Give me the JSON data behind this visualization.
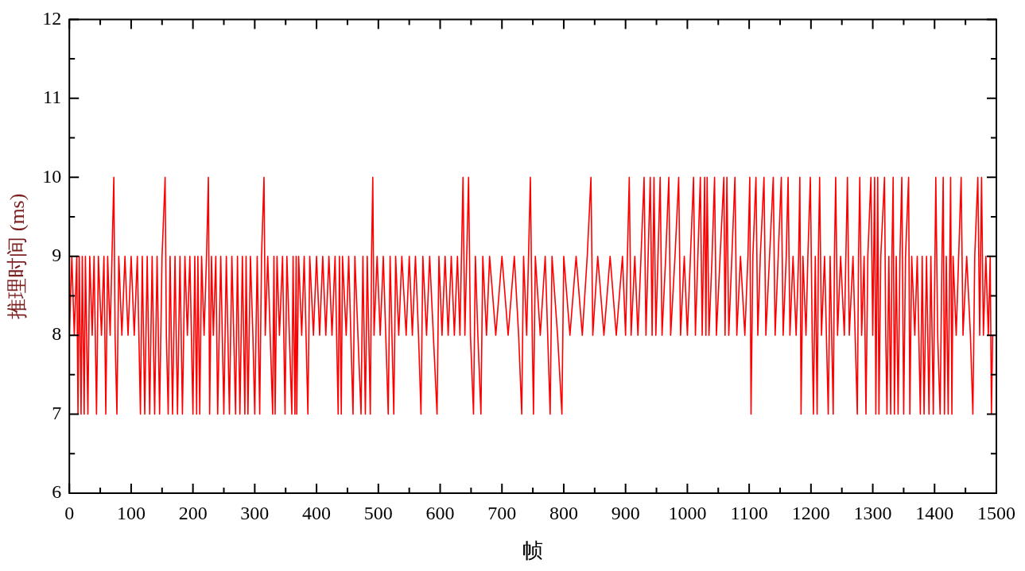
{
  "chart_data": {
    "type": "line",
    "xlabel": "帧",
    "ylabel": "推理时间 (ms)",
    "xlim": [
      0,
      1500
    ],
    "xticks": [
      0,
      100,
      200,
      300,
      400,
      500,
      600,
      700,
      800,
      900,
      1000,
      1100,
      1200,
      1300,
      1400,
      1500
    ],
    "ylim": [
      6,
      12
    ],
    "yticks": [
      6,
      7,
      8,
      9,
      10,
      11,
      12
    ],
    "grid": false,
    "legend": false,
    "marker": "none",
    "line_style": "solid",
    "series": [
      {
        "color": "#ff0000",
        "x": [
          0,
          4,
          8,
          12,
          14,
          16,
          19,
          21,
          24,
          26,
          30,
          33,
          37,
          40,
          44,
          47,
          52,
          56,
          59,
          62,
          66,
          69,
          72,
          74,
          77,
          80,
          85,
          90,
          95,
          100,
          105,
          110,
          115,
          118,
          122,
          126,
          130,
          134,
          138,
          142,
          146,
          150,
          155,
          157,
          160,
          163,
          167,
          171,
          175,
          179,
          183,
          187,
          191,
          195,
          200,
          203,
          206,
          208,
          211,
          214,
          218,
          222,
          225,
          227,
          230,
          233,
          237,
          240,
          245,
          250,
          254,
          259,
          263,
          269,
          272,
          276,
          280,
          284,
          286,
          289,
          293,
          297,
          300,
          304,
          308,
          311,
          315,
          317,
          321,
          325,
          329,
          331,
          333,
          336,
          340,
          345,
          349,
          352,
          356,
          360,
          362,
          365,
          367,
          368,
          371,
          376,
          380,
          386,
          389,
          395,
          400,
          405,
          410,
          415,
          420,
          425,
          430,
          435,
          437,
          440,
          442,
          448,
          452,
          459,
          462,
          467,
          472,
          475,
          479,
          482,
          487,
          489,
          491,
          493,
          498,
          503,
          508,
          512,
          516,
          519,
          525,
          528,
          533,
          538,
          545,
          550,
          555,
          560,
          565,
          569,
          572,
          578,
          583,
          589,
          595,
          598,
          603,
          608,
          613,
          618,
          623,
          628,
          632,
          637,
          640,
          646,
          649,
          654,
          657,
          661,
          666,
          669,
          675,
          680,
          690,
          700,
          710,
          720,
          727,
          732,
          735,
          740,
          746,
          749,
          751,
          754,
          762,
          770,
          778,
          781,
          790,
          797,
          800,
          810,
          820,
          830,
          838,
          844,
          847,
          855,
          865,
          875,
          885,
          895,
          900,
          906,
          909,
          915,
          920,
          930,
          933,
          940,
          943,
          946,
          949,
          956,
          959,
          965,
          970,
          973,
          980,
          986,
          989,
          995,
          1000,
          1005,
          1010,
          1013,
          1021,
          1024,
          1028,
          1030,
          1032,
          1035,
          1040,
          1044,
          1047,
          1053,
          1059,
          1061,
          1064,
          1067,
          1072,
          1077,
          1080,
          1086,
          1093,
          1098,
          1101,
          1103,
          1106,
          1111,
          1114,
          1118,
          1124,
          1127,
          1133,
          1139,
          1142,
          1147,
          1152,
          1155,
          1160,
          1163,
          1166,
          1171,
          1176,
          1180,
          1182,
          1184,
          1187,
          1192,
          1195,
          1199,
          1202,
          1204,
          1207,
          1210,
          1212,
          1214,
          1217,
          1222,
          1228,
          1231,
          1236,
          1238,
          1240,
          1243,
          1248,
          1254,
          1259,
          1262,
          1268,
          1275,
          1277,
          1279,
          1282,
          1286,
          1289,
          1292,
          1297,
          1300,
          1303,
          1305,
          1308,
          1310,
          1313,
          1319,
          1321,
          1323,
          1326,
          1329,
          1331,
          1333,
          1335,
          1338,
          1341,
          1344,
          1347,
          1350,
          1353,
          1358,
          1360,
          1363,
          1368,
          1372,
          1377,
          1380,
          1383,
          1387,
          1391,
          1394,
          1398,
          1402,
          1405,
          1409,
          1412,
          1414,
          1416,
          1419,
          1422,
          1426,
          1428,
          1430,
          1435,
          1443,
          1446,
          1452,
          1458,
          1462,
          1465,
          1470,
          1473,
          1476,
          1479,
          1483,
          1487,
          1490,
          1492,
          1494
        ],
        "values": [
          8,
          9,
          8,
          9,
          7,
          9,
          7,
          9,
          7,
          9,
          7,
          9,
          8,
          9,
          7,
          9,
          8,
          9,
          7,
          9,
          8,
          9,
          10,
          8,
          7,
          9,
          8,
          9,
          8,
          9,
          8,
          9,
          7,
          9,
          7,
          9,
          7,
          9,
          7,
          9,
          7,
          9,
          10,
          8,
          7,
          9,
          7,
          9,
          7,
          9,
          7,
          9,
          8,
          9,
          7,
          9,
          7,
          9,
          7,
          9,
          8,
          9,
          10,
          7,
          9,
          8,
          9,
          7,
          9,
          7,
          9,
          7,
          9,
          7,
          9,
          7,
          9,
          7,
          9,
          7,
          9,
          8,
          7,
          9,
          7,
          9,
          10,
          8,
          9,
          8,
          7,
          9,
          7,
          9,
          8,
          9,
          7,
          9,
          8,
          7,
          9,
          7,
          9,
          7,
          9,
          8,
          9,
          7,
          9,
          8,
          9,
          8,
          9,
          8,
          9,
          8,
          9,
          7,
          9,
          7,
          9,
          8,
          9,
          7,
          9,
          8,
          7,
          9,
          7,
          9,
          7,
          9,
          10,
          8,
          9,
          8,
          9,
          8,
          7,
          9,
          7,
          9,
          8,
          9,
          8,
          9,
          8,
          9,
          8,
          7,
          9,
          8,
          9,
          8,
          7,
          9,
          8,
          9,
          8,
          9,
          8,
          9,
          8,
          10,
          8,
          10,
          8,
          7,
          9,
          8,
          7,
          9,
          8,
          9,
          8,
          9,
          8,
          9,
          8,
          7,
          9,
          8,
          10,
          8,
          7,
          9,
          8,
          9,
          7,
          9,
          8,
          7,
          9,
          8,
          9,
          8,
          9,
          10,
          8,
          9,
          8,
          9,
          8,
          9,
          8,
          10,
          8,
          9,
          8,
          10,
          8,
          10,
          8,
          10,
          8,
          10,
          8,
          9,
          10,
          8,
          9,
          10,
          8,
          9,
          8,
          9,
          10,
          8,
          10,
          8,
          10,
          8,
          10,
          8,
          9,
          10,
          8,
          9,
          10,
          8,
          10,
          8,
          9,
          10,
          8,
          9,
          8,
          9,
          10,
          7,
          9,
          10,
          8,
          9,
          10,
          8,
          9,
          10,
          8,
          9,
          10,
          8,
          9,
          10,
          8,
          9,
          8,
          9,
          10,
          7,
          9,
          8,
          9,
          10,
          8,
          7,
          9,
          7,
          9,
          10,
          8,
          9,
          7,
          9,
          7,
          9,
          10,
          8,
          9,
          8,
          10,
          8,
          9,
          7,
          9,
          10,
          8,
          9,
          7,
          9,
          10,
          8,
          10,
          7,
          10,
          7,
          9,
          10,
          8,
          7,
          9,
          7,
          9,
          10,
          7,
          9,
          7,
          9,
          10,
          7,
          9,
          10,
          7,
          9,
          8,
          9,
          7,
          9,
          7,
          9,
          7,
          9,
          7,
          10,
          8,
          7,
          9,
          10,
          7,
          9,
          7,
          10,
          7,
          9,
          8,
          10,
          8,
          9,
          8,
          7,
          9,
          10,
          8,
          10,
          8,
          9,
          8,
          9,
          7,
          8
        ]
      }
    ]
  }
}
